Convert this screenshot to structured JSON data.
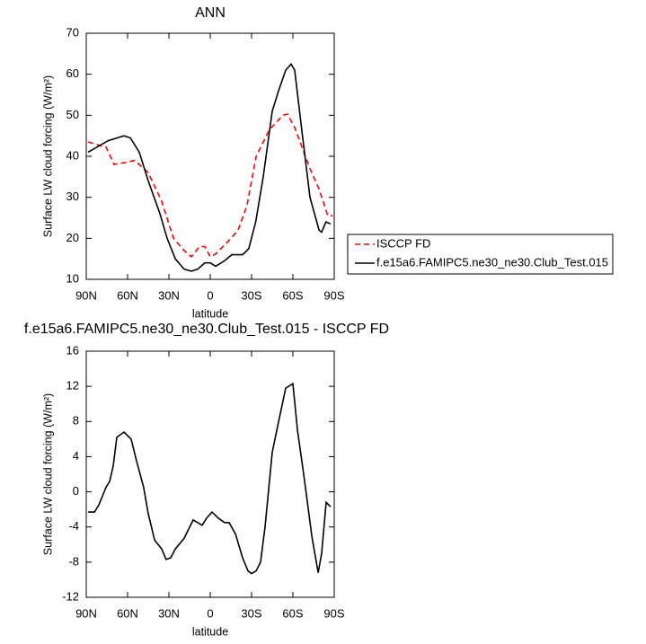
{
  "chart_data": [
    {
      "type": "line",
      "title": "ANN",
      "x_label": "latitude",
      "y_label": "Surface LW cloud forcing (W/m²)",
      "xlim": [
        90,
        -90
      ],
      "ylim": [
        10,
        70
      ],
      "xticks": [
        {
          "value": 90,
          "label": "90N"
        },
        {
          "value": 60,
          "label": "60N"
        },
        {
          "value": 30,
          "label": "30N"
        },
        0,
        {
          "value": -30,
          "label": "30S"
        },
        {
          "value": -60,
          "label": "60S"
        },
        {
          "value": -90,
          "label": "90S"
        }
      ],
      "yticks": [
        10,
        20,
        30,
        40,
        50,
        60,
        70
      ],
      "legend": "right",
      "series": [
        {
          "name": "ISCCP FD",
          "color": "#ff0000",
          "dashed": true,
          "x": [
            88.7,
            80.9,
            75.7,
            69.8,
            61.3,
            54.8,
            45,
            35.2,
            26.7,
            18.9,
            13.7,
            7.8,
            3.9,
            0,
            -3.9,
            -13.7,
            -20.2,
            -26.7,
            -33.3,
            -43,
            -52.8,
            -56,
            -61.3,
            -72.4,
            -79,
            -85.4,
            -88.7
          ],
          "values": [
            43.5,
            42.7,
            42.3,
            38,
            38.5,
            39,
            36,
            29,
            20,
            17,
            15.5,
            18,
            18,
            15.5,
            16.2,
            19.5,
            22,
            28,
            40,
            46.5,
            50,
            50.3,
            47,
            37,
            32,
            25.5,
            25.5
          ]
        },
        {
          "name": "f.e15a6.FAMIPC5.ne30_ne30.Club_Test.015",
          "color": "#000000",
          "dashed": false,
          "x": [
            88.7,
            74,
            62.6,
            58,
            51.5,
            45,
            36.5,
            31.3,
            25.4,
            19,
            13.7,
            9,
            4,
            0,
            -4,
            -10.4,
            -15.6,
            -23.5,
            -28,
            -33,
            -38.5,
            -45,
            -49.6,
            -54.8,
            -58.7,
            -61.3,
            -65.9,
            -72.4,
            -79,
            -80.9,
            -84,
            -87.4
          ],
          "values": [
            41,
            43.8,
            45,
            44.5,
            41,
            34,
            26,
            20,
            15,
            12.5,
            12,
            12.5,
            14,
            14,
            13.2,
            14.5,
            16,
            16,
            17.5,
            24,
            35,
            51,
            56,
            61,
            62.5,
            61,
            48,
            30,
            22,
            21.5,
            24,
            23.5
          ]
        }
      ]
    },
    {
      "type": "line",
      "title": "f.e15a6.FAMIPC5.ne30_ne30.Club_Test.015 - ISCCP FD",
      "x_label": "latitude",
      "y_label": "Surface LW cloud forcing (W/m²)",
      "xlim": [
        90,
        -90
      ],
      "ylim": [
        -12,
        16
      ],
      "xticks": [
        {
          "value": 90,
          "label": "90N"
        },
        {
          "value": 60,
          "label": "60N"
        },
        {
          "value": 30,
          "label": "30N"
        },
        0,
        {
          "value": -30,
          "label": "30S"
        },
        {
          "value": -60,
          "label": "60S"
        },
        {
          "value": -90,
          "label": "90S"
        }
      ],
      "yticks": [
        -12,
        -8,
        -4,
        0,
        4,
        8,
        12,
        16
      ],
      "series": [
        {
          "color": "#000000",
          "dashed": false,
          "x": [
            88.7,
            84,
            80.9,
            75.7,
            73,
            70.4,
            67.8,
            62.6,
            57.4,
            53.5,
            48.3,
            45,
            40.4,
            35.2,
            32,
            28.7,
            25.4,
            19,
            12.4,
            9.1,
            5.9,
            2.6,
            -1.3,
            -5.9,
            -10.4,
            -13.7,
            -18.3,
            -23.5,
            -27.4,
            -30,
            -33.3,
            -36.5,
            -39.8,
            -45,
            -49.6,
            -54.8,
            -60,
            -63.3,
            -67.8,
            -70.4,
            -73.7,
            -78.3,
            -80.9,
            -84.1,
            -87.4
          ],
          "values": [
            -2.3,
            -2.3,
            -1.5,
            0.5,
            1.2,
            3,
            6.2,
            6.8,
            6,
            3.5,
            0.5,
            -2.5,
            -5.5,
            -6.5,
            -7.7,
            -7.5,
            -6.5,
            -5.3,
            -3.2,
            -3.5,
            -3.8,
            -3,
            -2.3,
            -3,
            -3.5,
            -3.5,
            -4.8,
            -7.5,
            -9,
            -9.3,
            -9,
            -8,
            -4,
            4.5,
            8,
            11.8,
            12.3,
            7,
            2,
            -1,
            -5,
            -9.2,
            -7,
            -1.2,
            -1.7
          ]
        }
      ]
    }
  ]
}
